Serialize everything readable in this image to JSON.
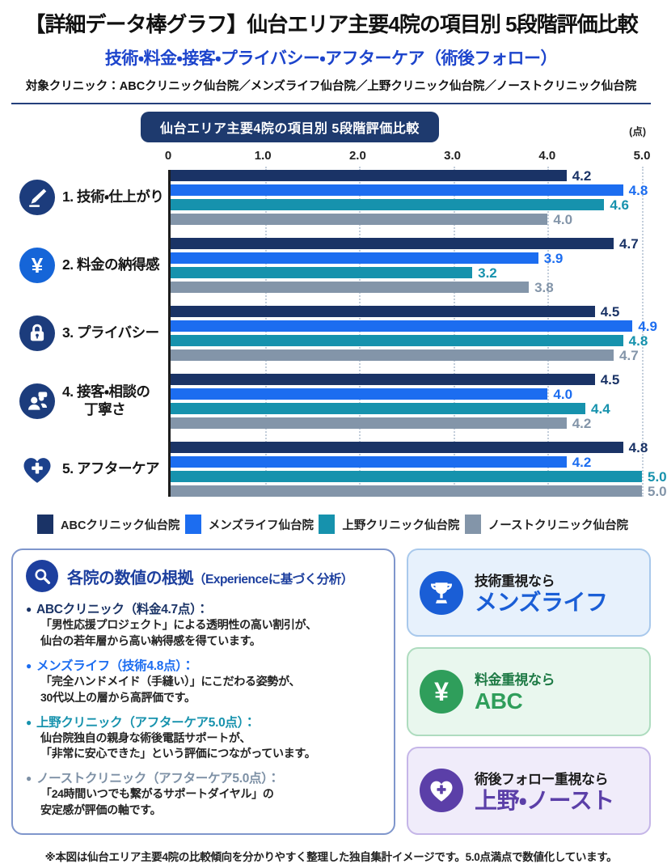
{
  "header": {
    "title": "【詳細データ棒グラフ】仙台エリア主要4院の項目別 5段階評価比較",
    "subtitle": "技術・料金・接客・プライバシー・アフターケア（術後フォロー）",
    "target_line": "対象クリニック：ABCクリニック仙台院／メンズライフ仙台院／上野クリニック仙台院／ノーストクリニック仙台院"
  },
  "chart_data": {
    "type": "bar",
    "orientation": "horizontal",
    "title": "仙台エリア主要4院の項目別 5段階評価比較",
    "unit_label": "(点)",
    "xlim": [
      0,
      5.0
    ],
    "tick_labels": [
      "0",
      "1.0",
      "2.0",
      "3.0",
      "4.0",
      "5.0"
    ],
    "tick_values": [
      0,
      1,
      2,
      3,
      4,
      5
    ],
    "grid": "dotted-vertical",
    "legend_position": "bottom",
    "categories": [
      {
        "label": "1. 技術・仕上がり",
        "label2": "",
        "icon": "scalpel-icon",
        "icon_color": "#1c3c7c",
        "icon_shape": "circle"
      },
      {
        "label": "2. 料金の納得感",
        "label2": "",
        "icon": "yen-icon",
        "icon_color": "#1565d8",
        "icon_shape": "circle"
      },
      {
        "label": "3. プライバシー",
        "label2": "",
        "icon": "lock-icon",
        "icon_color": "#1c3c7c",
        "icon_shape": "circle"
      },
      {
        "label": "4. 接客・相談の",
        "label2": "丁寧さ",
        "icon": "people-icon",
        "icon_color": "#1c3c7c",
        "icon_shape": "circle"
      },
      {
        "label": "5. アフターケア",
        "label2": "",
        "icon": "heart-cross-icon",
        "icon_color": "#1c418c",
        "icon_shape": "bare"
      }
    ],
    "series": [
      {
        "name": "ABCクリニック仙台院",
        "color": "#1a3366",
        "values": [
          4.2,
          4.7,
          4.5,
          4.5,
          4.8
        ]
      },
      {
        "name": "メンズライフ仙台院",
        "color": "#1c6df0",
        "values": [
          4.8,
          3.9,
          4.9,
          4.0,
          4.2
        ]
      },
      {
        "name": "上野クリニック仙台院",
        "color": "#1692ad",
        "values": [
          4.6,
          3.2,
          4.8,
          4.4,
          5.0
        ]
      },
      {
        "name": "ノーストクリニック仙台院",
        "color": "#8395a9",
        "values": [
          4.0,
          3.8,
          4.7,
          4.2,
          5.0
        ]
      }
    ]
  },
  "analysis": {
    "icon": "magnifier-icon",
    "accent_color": "#1d3f9e",
    "title": "各院の数値の根拠",
    "title_sub": "（Experienceに基づく分析）",
    "bullets": [
      {
        "name": "ABCクリニック（料金4.7点）：",
        "color": "#1a3366",
        "lines": [
          "「男性応援プロジェクト」による透明性の高い割引が、",
          "仙台の若年層から高い納得感を得ています。"
        ]
      },
      {
        "name": "メンズライフ（技術4.8点）：",
        "color": "#1c6df0",
        "lines": [
          "「完全ハンドメイド（手縫い）」にこだわる姿勢が、",
          "30代以上の層から高評価です。"
        ]
      },
      {
        "name": "上野クリニック（アフターケア5.0点）：",
        "color": "#1692ad",
        "lines": [
          "仙台院独自の親身な術後電話サポートが、",
          "「非常に安心できた」という評価につながっています。"
        ]
      },
      {
        "name": "ノーストクリニック（アフターケア5.0点）：",
        "color": "#7d90a5",
        "lines": [
          "「24時間いつでも繋がるサポートダイヤル」の",
          "安定感が評価の軸です。"
        ]
      }
    ]
  },
  "recommendations": [
    {
      "icon": "trophy-icon",
      "circle_color": "#1a5ed6",
      "bg": "#e7f1fc",
      "border": "#a9c9ec",
      "line1": "技術重視なら",
      "line1_color": "#1a1a1a",
      "line2": "メンズライフ",
      "line2_color": "#1a5ed6"
    },
    {
      "icon": "yen-icon",
      "circle_color": "#2f9e5b",
      "bg": "#e9f7ee",
      "border": "#aedcbf",
      "line1": "料金重視なら",
      "line1_color": "#1e7a45",
      "line2": "ABC",
      "line2_color": "#2f9e5b"
    },
    {
      "icon": "heart-cross-icon",
      "circle_color": "#5b3fa8",
      "bg": "#f0ecfa",
      "border": "#c5b6e8",
      "line1": "術後フォロー重視なら",
      "line1_color": "#1a1a1a",
      "line2": "上野・ノースト",
      "line2_color": "#5b3fa8"
    }
  ],
  "footer": {
    "note": "※本図は仙台エリア主要4院の比較傾向を分かりやすく整理した独自集計イメージです。5.0点満点で数値化しています。"
  }
}
